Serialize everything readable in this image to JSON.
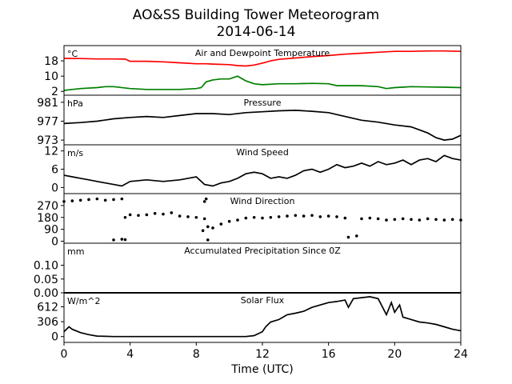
{
  "title": "AO&SS Building Tower Meteorogram",
  "subtitle": "2014-06-14",
  "xlabel": "Time (UTC)",
  "colors": {
    "temperature": "#ff0000",
    "dewpoint": "#008000",
    "default": "#000000"
  },
  "chart_data": [
    {
      "type": "line",
      "title": "Air and Dewpoint Temperature",
      "unit": "°C",
      "xlim": [
        0,
        24
      ],
      "ylim": [
        0,
        26
      ],
      "yticks": [
        2,
        10,
        18
      ],
      "series": [
        {
          "color": "#ff0000",
          "x": [
            0,
            1,
            2,
            3,
            3.7,
            4,
            5,
            6,
            7,
            8,
            8.6,
            9,
            10,
            10.5,
            11,
            11.5,
            12,
            12.5,
            13,
            14,
            15,
            16,
            17,
            18,
            19,
            20,
            21,
            22,
            23,
            24
          ],
          "y": [
            19.3,
            19.2,
            19.0,
            19.0,
            18.9,
            17.8,
            17.8,
            17.5,
            17.0,
            16.5,
            16.5,
            16.3,
            16.0,
            15.5,
            15.3,
            15.8,
            16.8,
            18.0,
            18.8,
            19.5,
            20.2,
            20.8,
            21.5,
            22.0,
            22.5,
            23.0,
            23.0,
            23.2,
            23.2,
            23.0
          ]
        },
        {
          "color": "#008000",
          "x": [
            0,
            0.5,
            1,
            2,
            2.5,
            3,
            4,
            5,
            6,
            7,
            8,
            8.3,
            8.6,
            9,
            9.5,
            10,
            10.5,
            11,
            11.5,
            12,
            13,
            14,
            15,
            16,
            16.5,
            17,
            18,
            19,
            19.5,
            20,
            21,
            22,
            23,
            24
          ],
          "y": [
            2.5,
            3.0,
            3.5,
            4.0,
            4.5,
            4.5,
            3.5,
            3.0,
            3.0,
            3.0,
            3.5,
            4.0,
            7.0,
            8.0,
            8.5,
            8.5,
            10.0,
            7.5,
            6.0,
            5.5,
            6.0,
            6.0,
            6.2,
            6.0,
            5.0,
            5.0,
            5.0,
            4.5,
            3.5,
            4.0,
            4.5,
            4.3,
            4.2,
            4.0
          ]
        }
      ]
    },
    {
      "type": "line",
      "title": "Pressure",
      "unit": "hPa",
      "xlim": [
        0,
        24
      ],
      "ylim": [
        972,
        982.5
      ],
      "yticks": [
        973,
        977,
        981
      ],
      "series": [
        {
          "color": "#000000",
          "x": [
            0,
            1,
            2,
            3,
            4,
            5,
            6,
            7,
            8,
            9,
            10,
            11,
            12,
            13,
            14,
            15,
            16,
            17,
            18,
            19,
            20,
            21,
            22,
            22.5,
            23,
            23.5,
            24
          ],
          "y": [
            976.5,
            976.7,
            977.0,
            977.5,
            977.8,
            978.0,
            977.8,
            978.2,
            978.6,
            978.6,
            978.4,
            978.8,
            979.0,
            979.2,
            979.3,
            979.1,
            978.8,
            978.0,
            977.2,
            976.8,
            976.2,
            975.8,
            974.5,
            973.5,
            973.0,
            973.2,
            974.0
          ]
        }
      ]
    },
    {
      "type": "line",
      "title": "Wind Speed",
      "unit": "m/s",
      "xlim": [
        0,
        24
      ],
      "ylim": [
        -2,
        14
      ],
      "yticks": [
        0,
        6,
        12
      ],
      "series": [
        {
          "color": "#000000",
          "x": [
            0,
            0.5,
            1,
            1.5,
            2,
            2.5,
            3,
            3.5,
            4,
            5,
            6,
            7,
            8,
            8.5,
            9,
            9.5,
            10,
            10.5,
            11,
            11.5,
            12,
            12.5,
            13,
            13.5,
            14,
            14.5,
            15,
            15.5,
            16,
            16.5,
            17,
            17.5,
            18,
            18.5,
            19,
            19.5,
            20,
            20.5,
            21,
            21.5,
            22,
            22.5,
            23,
            23.5,
            24
          ],
          "y": [
            4.0,
            3.5,
            3.0,
            2.5,
            2.0,
            1.5,
            1.0,
            0.5,
            2.0,
            2.5,
            2.0,
            2.5,
            3.5,
            1.0,
            0.5,
            1.5,
            2.0,
            3.0,
            4.5,
            5.0,
            4.5,
            3.0,
            3.5,
            3.0,
            4.0,
            5.5,
            6.0,
            5.0,
            6.0,
            7.5,
            6.5,
            7.0,
            8.0,
            7.0,
            8.5,
            7.5,
            8.0,
            9.0,
            7.5,
            9.0,
            9.5,
            8.5,
            10.5,
            9.5,
            9.0
          ]
        }
      ]
    },
    {
      "type": "scatter",
      "title": "Wind Direction",
      "unit": "",
      "xlim": [
        0,
        24
      ],
      "ylim": [
        -15,
        360
      ],
      "yticks": [
        0,
        90,
        180,
        270
      ],
      "series": [
        {
          "color": "#000000",
          "x": [
            0,
            0.5,
            1,
            1.5,
            2,
            2.5,
            3,
            3.5,
            3.7,
            4,
            4.5,
            5,
            5.5,
            6,
            6.5,
            7,
            7.5,
            8,
            8.5,
            8.7,
            9,
            9.5,
            10,
            10.5,
            11,
            11.5,
            12,
            12.5,
            13,
            13.5,
            14,
            14.5,
            15,
            15.5,
            16,
            16.5,
            17,
            17.2,
            17.7,
            18,
            18.5,
            19,
            19.5,
            20,
            20.5,
            21,
            21.5,
            22,
            22.5,
            23,
            23.5,
            24
          ],
          "y": [
            300,
            305,
            310,
            315,
            320,
            310,
            315,
            320,
            180,
            200,
            195,
            200,
            210,
            205,
            215,
            190,
            185,
            180,
            170,
            110,
            100,
            130,
            150,
            160,
            175,
            180,
            175,
            180,
            185,
            190,
            195,
            190,
            195,
            185,
            190,
            185,
            175,
            30,
            40,
            170,
            175,
            170,
            160,
            165,
            170,
            165,
            160,
            170,
            165,
            160,
            165,
            160
          ]
        },
        {
          "color": "#000000",
          "x": [
            3,
            3.5,
            3.7,
            8.4,
            8.5,
            8.6,
            8.7
          ],
          "y": [
            10,
            15,
            12,
            80,
            300,
            320,
            10
          ]
        }
      ]
    },
    {
      "type": "line",
      "title": "Accumulated Precipitation Since 0Z",
      "unit": "mm",
      "xlim": [
        0,
        24
      ],
      "ylim": [
        0,
        0.18
      ],
      "yticks": [
        0.0,
        0.05,
        0.1
      ],
      "ytick_labels": [
        "0.00",
        "0.05",
        "0.10"
      ],
      "series": [
        {
          "color": "#000000",
          "x": [
            0,
            24
          ],
          "y": [
            0,
            0
          ]
        }
      ]
    },
    {
      "type": "line",
      "title": "Solar Flux",
      "unit": "W/m^2",
      "xlim": [
        0,
        24
      ],
      "ylim": [
        -120,
        900
      ],
      "yticks": [
        0,
        306,
        612
      ],
      "series": [
        {
          "color": "#000000",
          "x": [
            0,
            0.3,
            0.5,
            1,
            1.5,
            2,
            3,
            4,
            6,
            8,
            10,
            11,
            11.5,
            12,
            12.2,
            12.5,
            13,
            13.5,
            14,
            14.5,
            15,
            15.5,
            16,
            16.5,
            17,
            17.2,
            17.5,
            18,
            18.5,
            19,
            19.5,
            19.8,
            20,
            20.3,
            20.5,
            21,
            21.5,
            22,
            22.5,
            23,
            23.5,
            24
          ],
          "y": [
            100,
            200,
            150,
            80,
            40,
            10,
            0,
            0,
            0,
            0,
            0,
            0,
            20,
            100,
            200,
            300,
            350,
            450,
            480,
            520,
            600,
            650,
            700,
            720,
            750,
            600,
            780,
            800,
            820,
            780,
            450,
            700,
            500,
            650,
            400,
            350,
            300,
            280,
            250,
            200,
            150,
            120
          ]
        }
      ]
    }
  ],
  "xticks": [
    0,
    4,
    8,
    12,
    16,
    20,
    24
  ]
}
